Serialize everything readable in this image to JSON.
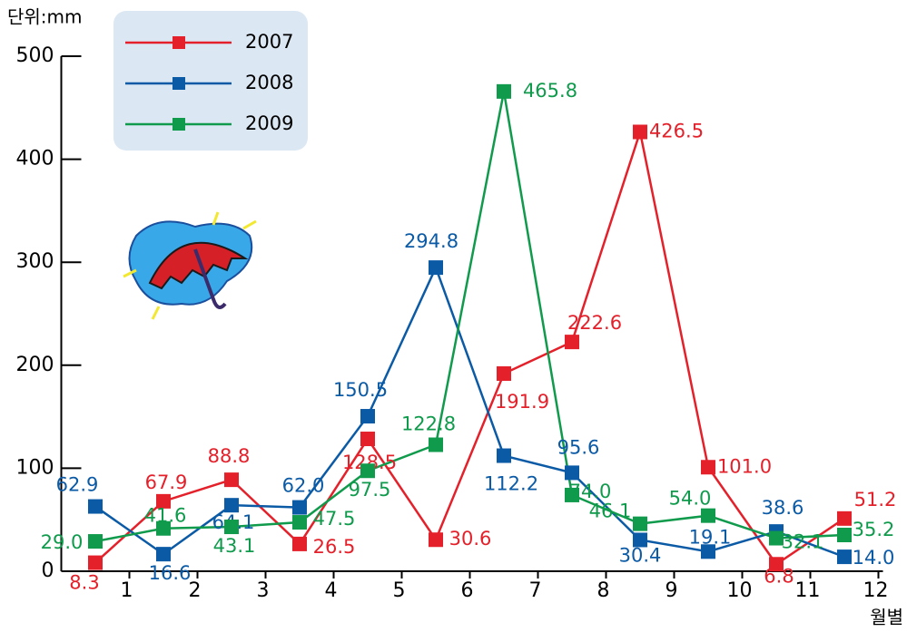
{
  "chart_data": {
    "type": "line",
    "unit_label": "단위:mm",
    "x_label": "월별",
    "categories": [
      "1",
      "2",
      "3",
      "4",
      "5",
      "6",
      "7",
      "8",
      "9",
      "10",
      "11",
      "12"
    ],
    "series": [
      {
        "name": "2007",
        "color": "#e4202a",
        "values": [
          8.3,
          67.9,
          88.8,
          26.5,
          128.5,
          30.6,
          191.9,
          222.6,
          426.5,
          101.0,
          6.8,
          51.2
        ],
        "value_labels": [
          "8.3",
          "67.9",
          "88.8",
          "26.5",
          "128.5",
          "30.6",
          "191.9",
          "222.6",
          "426.5",
          "101.0",
          "6.8",
          "51.2"
        ]
      },
      {
        "name": "2008",
        "color": "#0b5aa6",
        "values": [
          62.9,
          16.6,
          64.1,
          62.0,
          150.5,
          294.8,
          112.2,
          95.6,
          30.4,
          19.1,
          38.6,
          14.0
        ],
        "value_labels": [
          "62.9",
          "16.6",
          "64.1",
          "62.0",
          "150.5",
          "294.8",
          "112.2",
          "95.6",
          "30.4",
          "19.1",
          "38.6",
          "14.0"
        ]
      },
      {
        "name": "2009",
        "color": "#0f9a4c",
        "values": [
          29.0,
          41.6,
          43.1,
          47.5,
          97.5,
          122.8,
          465.8,
          74.0,
          46.1,
          54.0,
          32.1,
          35.2
        ],
        "value_labels": [
          "29.0",
          "41.6",
          "43.1",
          "47.5",
          "97.5",
          "122.8",
          "465.8",
          "74.0",
          "46.1",
          "54.0",
          "32.1",
          "35.2"
        ]
      }
    ],
    "ylim": [
      0,
      500
    ],
    "yticks": [
      0,
      100,
      200,
      300,
      400,
      500
    ],
    "grid": false,
    "legend": "top-left"
  }
}
